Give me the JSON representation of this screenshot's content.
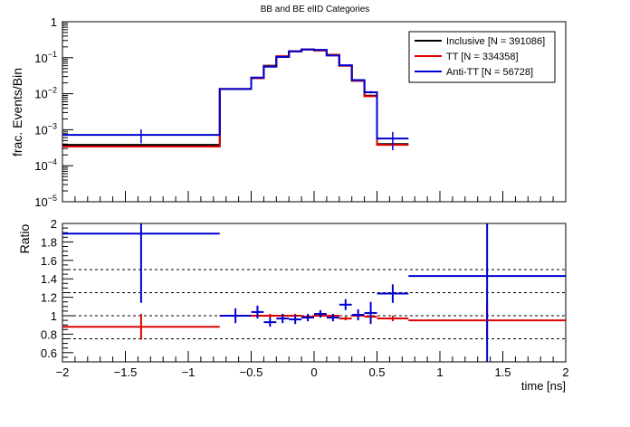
{
  "chart_data": [
    {
      "type": "line",
      "title": "BB and BE elID Categories",
      "ylabel": "frac. Events/Bin",
      "xlabel": "",
      "xlim": [
        -2,
        2
      ],
      "ylim": [
        1e-05,
        1
      ],
      "yscale": "log",
      "y_tick_labels": [
        "10^-5",
        "10^-4",
        "10^-3",
        "10^-2",
        "10^-1",
        "1"
      ],
      "legend_position": "top-right",
      "bin_edges": [
        -2,
        -0.75,
        -0.5,
        -0.4,
        -0.3,
        -0.2,
        -0.1,
        0,
        0.1,
        0.2,
        0.3,
        0.4,
        0.5,
        0.75,
        2
      ],
      "series": [
        {
          "name": "Inclusive [N = 391086]",
          "color": "#000000",
          "values": [
            0.00038,
            0.0135,
            0.027,
            0.06,
            0.11,
            0.15,
            0.168,
            0.16,
            0.12,
            0.06,
            0.023,
            0.0088,
            0.0004
          ]
        },
        {
          "name": "TT [N = 334358]",
          "color": "#e00000",
          "values": [
            0.00034,
            0.0135,
            0.027,
            0.058,
            0.11,
            0.15,
            0.168,
            0.16,
            0.12,
            0.06,
            0.023,
            0.0085,
            0.00038
          ]
        },
        {
          "name": "Anti-TT [N = 56728]",
          "color": "#0000d0",
          "values": [
            0.00072,
            0.0135,
            0.028,
            0.056,
            0.105,
            0.15,
            0.17,
            0.165,
            0.115,
            0.062,
            0.024,
            0.011,
            0.00057
          ],
          "errors": [
            0.0003,
            0.0008,
            0.0013,
            0.002,
            0.003,
            0.004,
            0.004,
            0.004,
            0.003,
            0.002,
            0.0013,
            0.0009,
            0.0003
          ]
        }
      ]
    },
    {
      "type": "line",
      "title": "",
      "xlabel": "time [ns]",
      "ylabel": "Ratio",
      "xlim": [
        -2,
        2
      ],
      "ylim": [
        0.5,
        2
      ],
      "x_ticks": [
        -2,
        -1.5,
        -1,
        -0.5,
        0,
        0.5,
        1,
        1.5,
        2
      ],
      "x_tick_labels": [
        "−2",
        "−1.5",
        "−1",
        "−0.5",
        "0",
        "0.5",
        "1",
        "1.5",
        "2"
      ],
      "y_ticks": [
        0.6,
        0.8,
        1,
        1.2,
        1.4,
        1.6,
        1.8,
        2
      ],
      "y_tick_labels": [
        "0.6",
        "0.8",
        "1",
        "1.2",
        "1.4",
        "1.6",
        "1.8",
        "2"
      ],
      "reference_lines": [
        0.75,
        1,
        1.25,
        1.5
      ],
      "series": [
        {
          "name": "TT",
          "color": "#e00000",
          "points": [
            {
              "x0": -2,
              "x1": -0.75,
              "y": 0.88,
              "err": 0.14
            },
            {
              "x0": -0.75,
              "x1": -0.5,
              "y": 1.0,
              "err": 0.02
            },
            {
              "x0": -0.5,
              "x1": -0.4,
              "y": 1.0,
              "err": 0.02
            },
            {
              "x0": -0.4,
              "x1": -0.3,
              "y": 1.0,
              "err": 0.02
            },
            {
              "x0": -0.3,
              "x1": -0.2,
              "y": 1.0,
              "err": 0.02
            },
            {
              "x0": -0.2,
              "x1": -0.1,
              "y": 1.0,
              "err": 0.02
            },
            {
              "x0": -0.1,
              "x1": 0,
              "y": 0.99,
              "err": 0.02
            },
            {
              "x0": 0,
              "x1": 0.1,
              "y": 1.0,
              "err": 0.02
            },
            {
              "x0": 0.1,
              "x1": 0.2,
              "y": 1.0,
              "err": 0.02
            },
            {
              "x0": 0.2,
              "x1": 0.3,
              "y": 0.97,
              "err": 0.02
            },
            {
              "x0": 0.3,
              "x1": 0.4,
              "y": 1.0,
              "err": 0.02
            },
            {
              "x0": 0.4,
              "x1": 0.5,
              "y": 0.99,
              "err": 0.02
            },
            {
              "x0": 0.5,
              "x1": 0.75,
              "y": 0.97,
              "err": 0.03
            },
            {
              "x0": 0.75,
              "x1": 2,
              "y": 0.95,
              "err": 0.2
            }
          ]
        },
        {
          "name": "Anti-TT",
          "color": "#0000d0",
          "points": [
            {
              "x0": -2,
              "x1": -0.75,
              "y": 1.89,
              "err": 0.75
            },
            {
              "x0": -0.75,
              "x1": -0.5,
              "y": 1.0,
              "err": 0.08
            },
            {
              "x0": -0.5,
              "x1": -0.4,
              "y": 1.04,
              "err": 0.07
            },
            {
              "x0": -0.4,
              "x1": -0.3,
              "y": 0.93,
              "err": 0.05
            },
            {
              "x0": -0.3,
              "x1": -0.2,
              "y": 0.97,
              "err": 0.05
            },
            {
              "x0": -0.2,
              "x1": -0.1,
              "y": 0.96,
              "err": 0.05
            },
            {
              "x0": -0.1,
              "x1": 0,
              "y": 0.98,
              "err": 0.04
            },
            {
              "x0": 0,
              "x1": 0.1,
              "y": 1.02,
              "err": 0.04
            },
            {
              "x0": 0.1,
              "x1": 0.2,
              "y": 0.98,
              "err": 0.04
            },
            {
              "x0": 0.2,
              "x1": 0.3,
              "y": 1.12,
              "err": 0.06
            },
            {
              "x0": 0.3,
              "x1": 0.4,
              "y": 1.01,
              "err": 0.06
            },
            {
              "x0": 0.4,
              "x1": 0.5,
              "y": 1.03,
              "err": 0.12
            },
            {
              "x0": 0.5,
              "x1": 0.75,
              "y": 1.24,
              "err": 0.1
            },
            {
              "x0": 0.75,
              "x1": 2,
              "y": 1.43,
              "err": 0.95
            }
          ]
        }
      ]
    }
  ]
}
